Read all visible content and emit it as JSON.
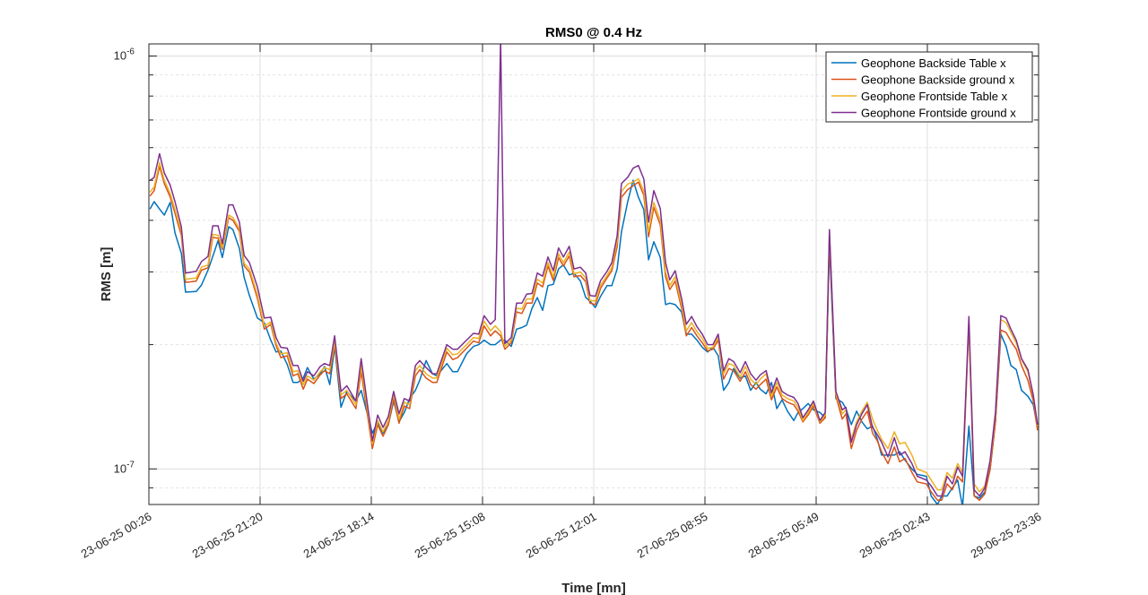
{
  "chart_data": {
    "type": "line",
    "title": "RMS0 @ 0.4 Hz",
    "xlabel": "Time [mn]",
    "ylabel": "RMS [m]",
    "y_scale": "log",
    "value_unit_multiplier": 1e-07,
    "xlim_hours": [
      0,
      167.2
    ],
    "ylim": [
      0.82,
      10.7
    ],
    "grid": true,
    "legend_position": "top-right",
    "xticks": [
      {
        "hours": 0,
        "label": "23-06-25 00:26"
      },
      {
        "hours": 20.9,
        "label": "23-06-25 21:20"
      },
      {
        "hours": 41.8,
        "label": "24-06-25 18:14"
      },
      {
        "hours": 62.7,
        "label": "25-06-25 15:08"
      },
      {
        "hours": 83.6,
        "label": "26-06-25 12:01"
      },
      {
        "hours": 104.5,
        "label": "27-06-25 08:55"
      },
      {
        "hours": 125.4,
        "label": "28-06-25 05:49"
      },
      {
        "hours": 146.3,
        "label": "29-06-25 02:43"
      },
      {
        "hours": 167.2,
        "label": "29-06-25 23:36"
      }
    ],
    "yticks": [
      {
        "value": 10,
        "base": "10",
        "exp": "-6"
      },
      {
        "value": 1,
        "base": "10",
        "exp": "-7"
      }
    ],
    "x_hours": [
      0.2,
      1.0,
      2.0,
      2.9,
      4.0,
      4.9,
      6.1,
      6.9,
      8.9,
      9.9,
      11.1,
      12.0,
      13.0,
      13.8,
      15.0,
      15.8,
      17.0,
      17.9,
      18.9,
      20.4,
      21.7,
      22.9,
      23.9,
      24.8,
      26.0,
      27.1,
      28.0,
      29.0,
      29.8,
      31.0,
      32.2,
      33.0,
      34.0,
      34.9,
      36.1,
      37.2,
      38.9,
      39.9,
      42.0,
      43.0,
      44.0,
      45.0,
      46.0,
      47.0,
      48.0,
      49.0,
      50.1,
      50.9,
      52.1,
      53.3,
      54.1,
      56.0,
      57.1,
      58.0,
      59.7,
      61.0,
      62.0,
      63.0,
      64.2,
      65.1,
      66.1,
      66.9,
      68.1,
      69.1,
      70.1,
      71.0,
      72.0,
      73.0,
      74.0,
      75.0,
      76.0,
      77.0,
      77.9,
      79.0,
      79.9,
      81.1,
      82.1,
      82.9,
      83.9,
      84.9,
      86.1,
      87.0,
      88.0,
      88.8,
      90.0,
      91.0,
      92.0,
      93.0,
      93.9,
      94.9,
      96.1,
      97.1,
      97.9,
      98.9,
      100.1,
      101.0,
      102.0,
      103.0,
      104.0,
      105.0,
      106.0,
      107.0,
      108.0,
      109.0,
      109.9,
      111.1,
      112.1,
      113.1,
      114.1,
      114.9,
      116.0,
      117.0,
      118.0,
      119.0,
      120.0,
      121.2,
      122.0,
      122.9,
      123.9,
      124.9,
      126.1,
      127.1,
      127.9,
      129.1,
      130.3,
      131.0,
      132.0,
      133.0,
      134.0,
      135.0,
      136.0,
      136.9,
      137.7,
      138.9,
      140.1,
      141.1,
      142.1,
      143.4,
      144.4,
      146.1,
      147.0,
      148.2,
      149.0,
      150.0,
      151.0,
      152.0,
      152.9,
      154.1,
      155.1,
      156.1,
      157.1,
      158.1,
      159.1,
      160.1,
      161.1,
      162.0,
      163.0,
      164.0,
      165.2,
      166.2,
      167.0
    ],
    "series": [
      {
        "name": "Geophone Backside Table x",
        "color": "#0072BD",
        "values": [
          4.26,
          4.44,
          4.26,
          4.12,
          4.42,
          3.73,
          3.33,
          2.68,
          2.69,
          2.79,
          3.03,
          3.27,
          3.57,
          3.25,
          3.86,
          3.8,
          3.42,
          2.91,
          2.63,
          2.32,
          2.26,
          2.05,
          1.92,
          1.93,
          1.79,
          1.62,
          1.62,
          1.66,
          1.76,
          1.65,
          1.7,
          1.77,
          1.6,
          1.98,
          1.41,
          1.54,
          1.46,
          1.55,
          1.22,
          1.3,
          1.22,
          1.28,
          1.46,
          1.3,
          1.37,
          1.48,
          1.55,
          1.64,
          1.83,
          1.7,
          1.68,
          1.8,
          1.72,
          1.72,
          1.9,
          1.98,
          2.0,
          2.05,
          2.0,
          2.0,
          2.05,
          2.05,
          1.98,
          2.18,
          2.2,
          2.23,
          2.45,
          2.6,
          2.42,
          2.78,
          2.8,
          3.05,
          3.12,
          2.95,
          2.98,
          2.85,
          2.6,
          2.55,
          2.46,
          2.62,
          2.78,
          2.78,
          3.05,
          3.75,
          4.45,
          5.0,
          4.55,
          4.25,
          3.21,
          3.55,
          3.25,
          2.5,
          2.52,
          2.5,
          2.4,
          2.12,
          2.12,
          2.05,
          1.97,
          1.92,
          1.97,
          1.88,
          1.55,
          1.62,
          1.75,
          1.66,
          1.68,
          1.55,
          1.62,
          1.56,
          1.52,
          1.62,
          1.4,
          1.47,
          1.38,
          1.31,
          1.37,
          1.4,
          1.44,
          1.39,
          1.37,
          1.33,
          3.5,
          1.48,
          1.45,
          1.4,
          1.28,
          1.38,
          1.3,
          1.25,
          1.27,
          1.18,
          1.08,
          1.08,
          1.08,
          1.1,
          1.05,
          1.0,
          0.97,
          0.96,
          0.86,
          0.82,
          0.86,
          0.86,
          0.9,
          0.94,
          0.81,
          1.27,
          0.86,
          0.85,
          0.88,
          1.0,
          1.3,
          2.12,
          1.98,
          1.78,
          1.74,
          1.55,
          1.5,
          1.43,
          1.26
        ]
      },
      {
        "name": "Geophone Backside ground x",
        "color": "#D95319",
        "values": [
          4.58,
          4.72,
          5.41,
          4.91,
          4.56,
          4.16,
          3.68,
          2.83,
          2.85,
          3.03,
          3.07,
          3.64,
          3.62,
          3.4,
          4.06,
          4.0,
          3.76,
          3.1,
          3.0,
          2.59,
          2.18,
          2.24,
          1.99,
          1.86,
          1.88,
          1.68,
          1.7,
          1.56,
          1.65,
          1.61,
          1.69,
          1.73,
          1.7,
          2.0,
          1.48,
          1.52,
          1.4,
          1.72,
          1.12,
          1.28,
          1.2,
          1.28,
          1.48,
          1.29,
          1.42,
          1.4,
          1.68,
          1.74,
          1.66,
          1.62,
          1.62,
          1.92,
          1.84,
          1.86,
          1.96,
          2.04,
          2.02,
          2.22,
          2.1,
          2.16,
          2.1,
          1.95,
          2.02,
          2.4,
          2.38,
          2.52,
          2.52,
          2.82,
          2.76,
          3.1,
          2.86,
          3.25,
          3.1,
          3.28,
          2.92,
          2.94,
          2.84,
          2.52,
          2.5,
          2.74,
          2.9,
          3.02,
          3.45,
          4.55,
          4.75,
          4.85,
          4.95,
          4.6,
          3.65,
          4.3,
          3.9,
          2.92,
          2.72,
          2.85,
          2.45,
          2.1,
          2.2,
          2.1,
          2.02,
          1.93,
          1.95,
          2.05,
          1.65,
          1.75,
          1.73,
          1.63,
          1.72,
          1.6,
          1.56,
          1.6,
          1.65,
          1.47,
          1.58,
          1.48,
          1.45,
          1.43,
          1.38,
          1.3,
          1.35,
          1.42,
          1.29,
          1.33,
          3.65,
          1.5,
          1.32,
          1.36,
          1.12,
          1.24,
          1.32,
          1.38,
          1.22,
          1.17,
          1.1,
          1.03,
          1.13,
          1.04,
          1.06,
          0.98,
          0.93,
          0.92,
          0.88,
          0.84,
          0.84,
          0.92,
          0.89,
          0.96,
          0.93,
          2.25,
          0.86,
          0.84,
          0.87,
          1.0,
          1.3,
          2.17,
          2.14,
          2.04,
          1.95,
          1.78,
          1.64,
          1.46,
          1.24
        ]
      },
      {
        "name": "Geophone Frontside Table x",
        "color": "#EDB120",
        "values": [
          4.68,
          4.82,
          5.52,
          5.0,
          4.65,
          4.25,
          3.76,
          2.88,
          2.9,
          3.08,
          3.12,
          3.7,
          3.68,
          3.44,
          4.12,
          4.06,
          3.82,
          3.15,
          3.05,
          2.64,
          2.22,
          2.27,
          2.02,
          1.9,
          1.91,
          1.72,
          1.73,
          1.6,
          1.68,
          1.64,
          1.72,
          1.76,
          1.74,
          2.04,
          1.51,
          1.55,
          1.43,
          1.78,
          1.15,
          1.31,
          1.23,
          1.31,
          1.52,
          1.32,
          1.45,
          1.43,
          1.73,
          1.78,
          1.7,
          1.66,
          1.66,
          1.96,
          1.89,
          1.9,
          2.0,
          2.08,
          2.07,
          2.28,
          2.16,
          2.22,
          2.15,
          1.98,
          2.05,
          2.45,
          2.44,
          2.58,
          2.58,
          2.88,
          2.82,
          3.16,
          2.92,
          3.32,
          3.16,
          3.35,
          2.97,
          3.0,
          2.9,
          2.56,
          2.55,
          2.79,
          2.94,
          3.08,
          3.55,
          4.7,
          4.9,
          4.95,
          5.04,
          4.72,
          3.75,
          4.42,
          4.0,
          3.0,
          2.78,
          2.92,
          2.5,
          2.16,
          2.26,
          2.15,
          2.07,
          1.96,
          1.97,
          2.08,
          1.7,
          1.8,
          1.78,
          1.67,
          1.77,
          1.65,
          1.6,
          1.65,
          1.7,
          1.5,
          1.62,
          1.51,
          1.48,
          1.46,
          1.41,
          1.31,
          1.37,
          1.44,
          1.3,
          1.35,
          3.72,
          1.52,
          1.36,
          1.39,
          1.18,
          1.3,
          1.38,
          1.45,
          1.32,
          1.24,
          1.18,
          1.12,
          1.23,
          1.15,
          1.16,
          1.08,
          1.0,
          0.98,
          0.94,
          0.89,
          0.89,
          0.98,
          0.95,
          1.03,
          0.98,
          2.28,
          0.92,
          0.88,
          0.91,
          1.04,
          1.35,
          2.3,
          2.26,
          2.14,
          2.02,
          1.84,
          1.72,
          1.5,
          1.27
        ]
      },
      {
        "name": "Geophone Frontside ground x",
        "color": "#7E2F8E",
        "values": [
          5.0,
          5.08,
          5.8,
          5.21,
          4.87,
          4.44,
          3.86,
          2.98,
          3.01,
          3.18,
          3.27,
          3.88,
          3.88,
          3.51,
          4.36,
          4.36,
          3.96,
          3.29,
          3.16,
          2.76,
          2.32,
          2.33,
          2.08,
          1.97,
          1.96,
          1.78,
          1.78,
          1.63,
          1.72,
          1.68,
          1.77,
          1.8,
          1.78,
          2.1,
          1.54,
          1.59,
          1.46,
          1.85,
          1.17,
          1.35,
          1.26,
          1.34,
          1.54,
          1.36,
          1.48,
          1.46,
          1.78,
          1.83,
          1.76,
          1.7,
          1.7,
          2.0,
          1.95,
          1.95,
          2.05,
          2.13,
          2.12,
          2.35,
          2.24,
          2.3,
          11.0,
          2.01,
          2.08,
          2.52,
          2.52,
          2.65,
          2.66,
          2.98,
          2.93,
          3.26,
          3.02,
          3.43,
          3.26,
          3.46,
          3.05,
          3.08,
          2.98,
          2.63,
          2.62,
          2.86,
          3.01,
          3.16,
          3.67,
          4.91,
          5.09,
          5.35,
          5.43,
          5.04,
          3.96,
          4.72,
          4.27,
          3.16,
          2.87,
          3.02,
          2.59,
          2.24,
          2.34,
          2.21,
          2.12,
          2.0,
          2.0,
          2.12,
          1.73,
          1.85,
          1.82,
          1.71,
          1.82,
          1.7,
          1.64,
          1.69,
          1.73,
          1.53,
          1.66,
          1.54,
          1.51,
          1.49,
          1.44,
          1.33,
          1.39,
          1.46,
          1.31,
          1.37,
          3.8,
          1.54,
          1.39,
          1.41,
          1.16,
          1.28,
          1.36,
          1.43,
          1.26,
          1.21,
          1.16,
          1.07,
          1.19,
          1.08,
          1.1,
          1.03,
          0.96,
          0.94,
          0.91,
          0.86,
          0.86,
          0.96,
          0.92,
          1.01,
          0.96,
          2.34,
          0.89,
          0.86,
          0.9,
          1.05,
          1.37,
          2.35,
          2.32,
          2.18,
          2.05,
          1.85,
          1.74,
          1.51,
          1.28
        ]
      }
    ]
  }
}
